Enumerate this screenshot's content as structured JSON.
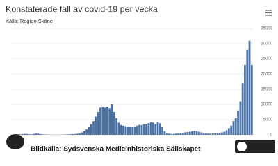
{
  "chart_data": {
    "type": "bar",
    "title": "Konstaterade fall av covid-19 per vecka",
    "subtitle": "Källa: Region Skåne",
    "watermark": "Bildkälla: Sydsvenska Medicinhistoriska Sällskapet",
    "color": "#4a72a6",
    "categories": [
      null,
      null,
      null,
      null,
      null,
      null,
      null,
      null,
      null,
      null,
      null,
      null,
      null,
      null,
      null,
      null,
      null,
      null,
      null,
      null,
      null,
      null,
      null,
      null,
      null,
      null,
      null,
      null,
      null,
      null,
      null,
      null,
      null,
      null,
      null,
      null,
      null,
      null,
      null,
      null,
      null,
      null,
      null,
      null,
      null,
      null,
      null,
      null,
      null,
      null,
      null,
      null,
      null,
      null,
      null,
      null,
      null,
      null,
      null,
      null,
      null,
      null,
      null,
      null,
      null,
      null,
      null,
      null,
      null,
      null,
      null,
      null,
      null,
      null,
      null,
      null,
      null,
      null,
      null,
      null,
      null,
      null,
      null,
      null,
      null,
      null,
      null,
      null,
      null,
      null,
      null,
      null,
      null,
      null,
      null,
      null,
      null,
      null,
      null,
      null,
      null,
      null,
      null,
      null,
      null,
      null
    ],
    "values": [
      50,
      80,
      120,
      150,
      200,
      250,
      300,
      280,
      200,
      150,
      300,
      500,
      400,
      250,
      150,
      100,
      80,
      60,
      50,
      40,
      40,
      50,
      60,
      80,
      100,
      150,
      200,
      250,
      300,
      350,
      500,
      800,
      1200,
      1800,
      2500,
      3500,
      4500,
      6000,
      7500,
      9000,
      9200,
      9000,
      9300,
      8800,
      10000,
      7500,
      5500,
      4000,
      3200,
      3000,
      2800,
      2700,
      2600,
      2500,
      2600,
      3000,
      3300,
      3200,
      3500,
      3400,
      3800,
      4200,
      4000,
      3500,
      4300,
      3800,
      2500,
      1200,
      600,
      400,
      300,
      300,
      400,
      500,
      600,
      700,
      800,
      900,
      1000,
      1200,
      1300,
      1200,
      1000,
      800,
      600,
      500,
      400,
      400,
      450,
      500,
      600,
      700,
      800,
      1000,
      1500,
      2200,
      3000,
      4500,
      5500,
      8000,
      11000,
      17000,
      23000,
      28000,
      31000,
      23000
    ],
    "ylim": [
      0,
      35000
    ],
    "yticks": [
      0,
      5000,
      10000,
      15000,
      20000,
      25000,
      30000,
      35000
    ],
    "grid": true
  }
}
